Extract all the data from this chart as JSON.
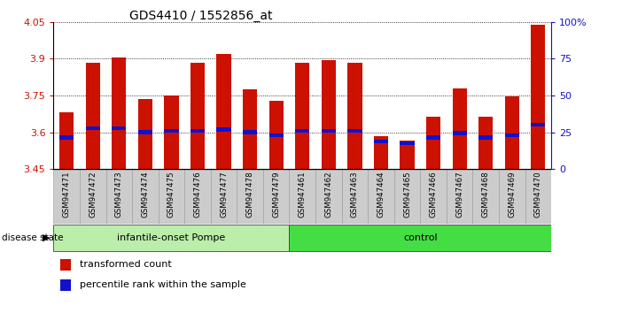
{
  "title": "GDS4410 / 1552856_at",
  "samples": [
    "GSM947471",
    "GSM947472",
    "GSM947473",
    "GSM947474",
    "GSM947475",
    "GSM947476",
    "GSM947477",
    "GSM947478",
    "GSM947479",
    "GSM947461",
    "GSM947462",
    "GSM947463",
    "GSM947464",
    "GSM947465",
    "GSM947466",
    "GSM947467",
    "GSM947468",
    "GSM947469",
    "GSM947470"
  ],
  "bar_values": [
    3.68,
    3.885,
    3.905,
    3.735,
    3.75,
    3.885,
    3.92,
    3.775,
    3.73,
    3.885,
    3.895,
    3.885,
    3.585,
    3.565,
    3.665,
    3.78,
    3.665,
    3.745,
    4.04
  ],
  "percentile_positions": [
    3.578,
    3.617,
    3.617,
    3.6,
    3.605,
    3.606,
    3.611,
    3.6,
    3.587,
    3.606,
    3.606,
    3.606,
    3.562,
    3.555,
    3.578,
    3.596,
    3.578,
    3.587,
    3.63
  ],
  "y_min": 3.45,
  "y_max": 4.05,
  "y_ticks": [
    3.45,
    3.6,
    3.75,
    3.9,
    4.05
  ],
  "y_tick_labels": [
    "3.45",
    "3.6",
    "3.75",
    "3.9",
    "4.05"
  ],
  "right_y_ticks_pct": [
    0,
    25,
    50,
    75,
    100
  ],
  "right_y_tick_labels": [
    "0",
    "25",
    "50",
    "75",
    "100%"
  ],
  "bar_color": "#cc1100",
  "percentile_color": "#1111cc",
  "bar_width": 0.55,
  "groups": [
    {
      "label": "infantile-onset Pompe",
      "start": 0,
      "end": 9,
      "color": "#bbeeaa"
    },
    {
      "label": "control",
      "start": 9,
      "end": 19,
      "color": "#44dd44"
    }
  ],
  "disease_state_label": "disease state",
  "legend_items": [
    {
      "label": "transformed count",
      "color": "#cc1100"
    },
    {
      "label": "percentile rank within the sample",
      "color": "#1111cc"
    }
  ],
  "n_pompe": 9,
  "n_total": 19,
  "perc_bar_height": 0.016,
  "xtick_bg": "#cccccc",
  "xtick_border": "#999999"
}
